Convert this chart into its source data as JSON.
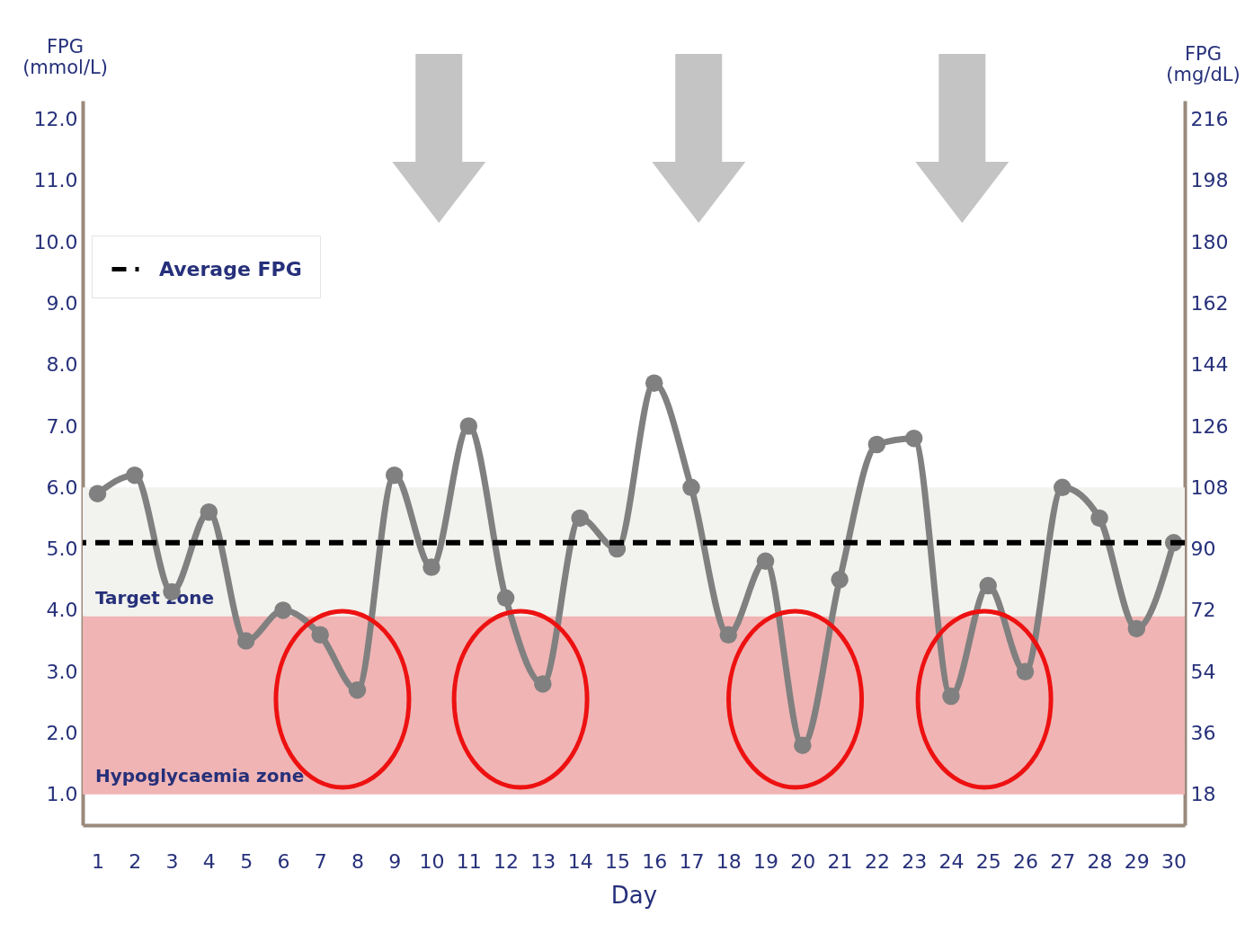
{
  "chart_data": {
    "type": "line",
    "xlabel": "Day",
    "ylabel": "FPG (mmol/L)",
    "y2label": "FPG (mg/dL)",
    "x": [
      1,
      2,
      3,
      4,
      5,
      6,
      7,
      8,
      9,
      10,
      11,
      12,
      13,
      14,
      15,
      16,
      17,
      18,
      19,
      20,
      21,
      22,
      23,
      24,
      25,
      26,
      27,
      28,
      29,
      30
    ],
    "xlim": [
      0.6,
      30.3
    ],
    "xticks": [
      1,
      2,
      3,
      4,
      5,
      6,
      7,
      8,
      9,
      10,
      11,
      12,
      13,
      14,
      15,
      16,
      17,
      18,
      19,
      20,
      21,
      22,
      23,
      24,
      25,
      26,
      27,
      28,
      29,
      30
    ],
    "ylim": [
      0.5,
      12.3
    ],
    "yticks": [
      {
        "value": 1,
        "label": "1.0"
      },
      {
        "value": 2,
        "label": "2.0"
      },
      {
        "value": 3,
        "label": "3.0"
      },
      {
        "value": 4,
        "label": "4.0"
      },
      {
        "value": 5,
        "label": "5.0"
      },
      {
        "value": 6,
        "label": "6.0"
      },
      {
        "value": 7,
        "label": "7.0"
      },
      {
        "value": 8,
        "label": "8.0"
      },
      {
        "value": 9,
        "label": "9.0"
      },
      {
        "value": 10,
        "label": "10.0"
      },
      {
        "value": 11,
        "label": "11.0"
      },
      {
        "value": 12,
        "label": "12.0"
      }
    ],
    "y2lim": [
      9,
      221.4
    ],
    "y2ticks": [
      18,
      36,
      54,
      72,
      90,
      108,
      126,
      144,
      162,
      180,
      198,
      216
    ],
    "series": [
      {
        "color": "#808080",
        "values": [
          5.9,
          6.2,
          4.3,
          5.6,
          3.5,
          4.0,
          3.6,
          2.7,
          6.2,
          4.7,
          7.0,
          4.2,
          2.8,
          5.5,
          5.0,
          7.7,
          6.0,
          3.6,
          4.8,
          1.8,
          4.5,
          6.7,
          6.8,
          2.6,
          4.4,
          3.0,
          6.0,
          5.5,
          3.7,
          5.1
        ]
      }
    ],
    "bands": [
      {
        "axis": "y",
        "from": 3.9,
        "to": 6.0,
        "label": "Target zone",
        "color": "#f2f2ee"
      },
      {
        "axis": "y",
        "from": 1.0,
        "to": 3.9,
        "label": "Hypoglycaemia zone",
        "color": "#f0b4b4"
      }
    ],
    "ref_lines": [
      {
        "axis": "y",
        "value": 5.1,
        "label": "Average FPG",
        "color": "#000000",
        "line_style": "dashed"
      }
    ],
    "legend": "top left",
    "marker": "circle",
    "line_style": "solid",
    "grid": false
  }
}
